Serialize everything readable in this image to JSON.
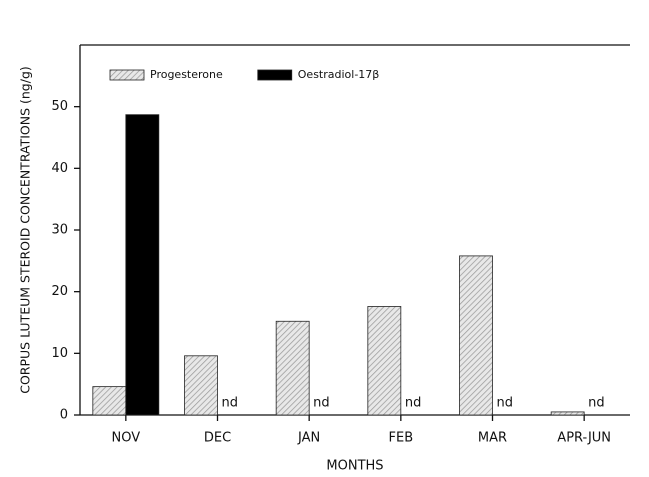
{
  "chart_data": {
    "type": "bar",
    "x_label": "MONTHS",
    "y_label": "CORPUS LUTEUM STEROID CONCENTRATIONS (ng/g)",
    "categories": [
      "NOV",
      "DEC",
      "JAN",
      "FEB",
      "MAR",
      "APR-JUN"
    ],
    "series": [
      {
        "name": "Progesterone",
        "color": "#9a9a9a",
        "values": [
          4.6,
          9.6,
          15.2,
          17.6,
          25.8,
          0.5
        ]
      },
      {
        "name": "Oestradiol-17β",
        "color": "#000000",
        "values": [
          48.7,
          null,
          null,
          null,
          null,
          null
        ],
        "value_labels": [
          null,
          "nd",
          "nd",
          "nd",
          "nd",
          "nd"
        ]
      }
    ],
    "ylim": [
      0,
      60
    ],
    "yticks": [
      0,
      10,
      20,
      30,
      40,
      50
    ],
    "legend": "top-left"
  }
}
